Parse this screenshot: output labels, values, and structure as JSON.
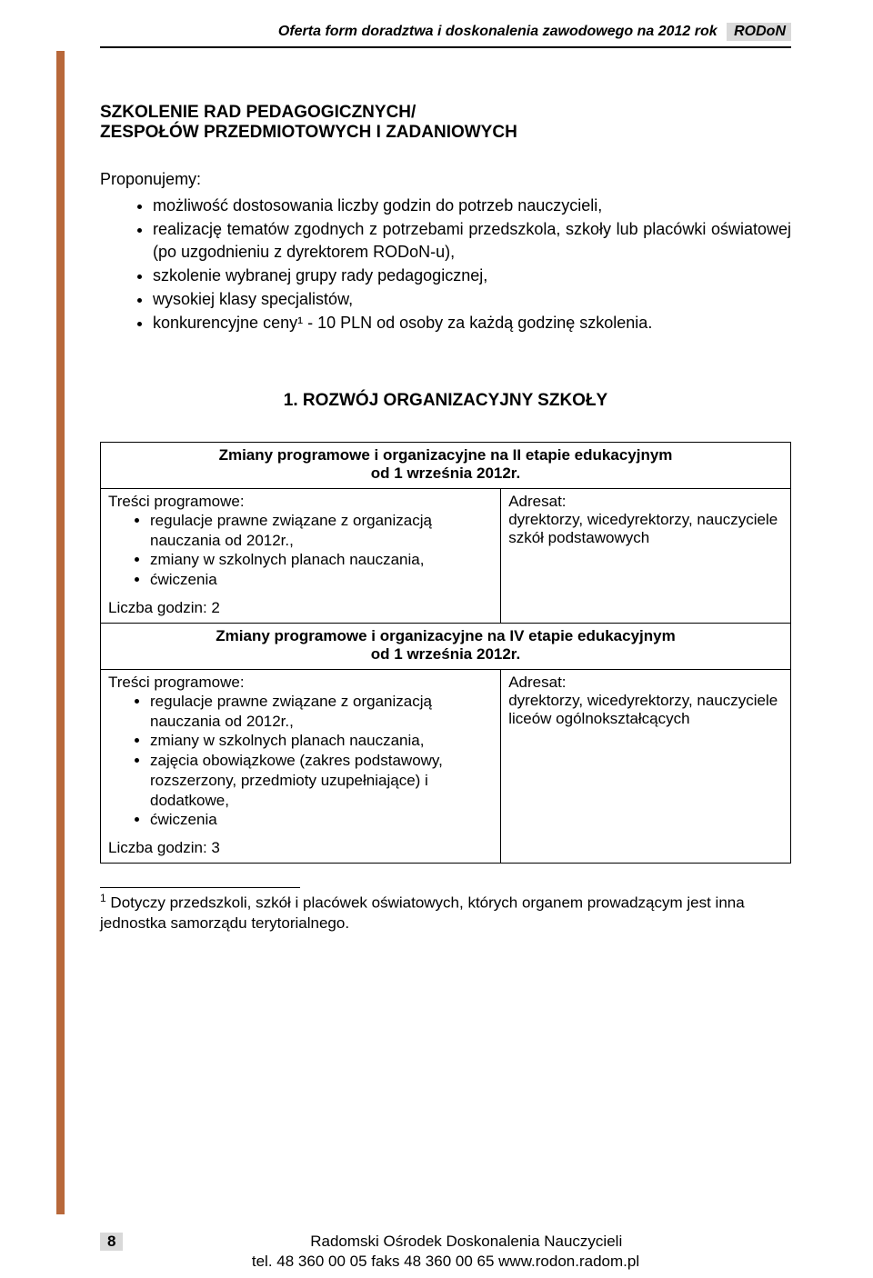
{
  "header": {
    "running_title": "Oferta form doradztwa i doskonalenia zawodowego na 2012 rok",
    "badge": "RODoN"
  },
  "main": {
    "heading_line1": "SZKOLENIE RAD PEDAGOGICZNYCH/",
    "heading_line2": "ZESPOŁÓW PRZEDMIOTOWYCH I ZADANIOWYCH",
    "propose_label": "Proponujemy:",
    "propose_items": [
      "możliwość dostosowania liczby godzin do potrzeb nauczycieli,",
      "realizację tematów zgodnych z potrzebami przedszkola, szkoły lub placówki oświatowej (po uzgodnieniu z dyrektorem RODoN-u),",
      "szkolenie wybranej grupy rady pedagogicznej,",
      "wysokiej klasy specjalistów,",
      "konkurencyjne ceny¹ - 10 PLN od osoby za każdą godzinę szkolenia."
    ],
    "section_heading": "1. ROZWÓJ ORGANIZACYJNY SZKOŁY"
  },
  "box1": {
    "title_line1": "Zmiany programowe i organizacyjne na II etapie edukacyjnym",
    "title_line2": "od 1 września 2012r.",
    "left_label": "Treści programowe:",
    "left_items": [
      "regulacje prawne związane z organizacją nauczania od 2012r.,",
      "zmiany w szkolnych planach nauczania,",
      "ćwiczenia"
    ],
    "hours": "Liczba godzin: 2",
    "right_label": "Adresat:",
    "right_text": "dyrektorzy, wicedyrektorzy, nauczyciele szkół podstawowych"
  },
  "box2": {
    "title_line1": "Zmiany programowe i organizacyjne na IV etapie edukacyjnym",
    "title_line2": "od 1 września 2012r.",
    "left_label": "Treści programowe:",
    "left_items": [
      "regulacje prawne związane z organizacją nauczania od 2012r.,",
      "zmiany w szkolnych planach nauczania,",
      "zajęcia obowiązkowe (zakres podstawowy, rozszerzony, przedmioty uzupełniające) i dodatkowe,",
      "ćwiczenia"
    ],
    "hours": "Liczba godzin: 3",
    "right_label": "Adresat:",
    "right_text": "dyrektorzy, wicedyrektorzy, nauczyciele liceów ogólnokształcących"
  },
  "footnote": {
    "marker": "1",
    "text": "Dotyczy przedszkoli, szkół i placówek oświatowych, których organem prowadzącym jest inna jednostka samorządu terytorialnego."
  },
  "footer": {
    "page_number": "8",
    "org": "Radomski Ośrodek Doskonalenia Nauczycieli",
    "contact": "tel. 48 360 00 05   faks 48 360 00 65   www.rodon.radom.pl"
  }
}
